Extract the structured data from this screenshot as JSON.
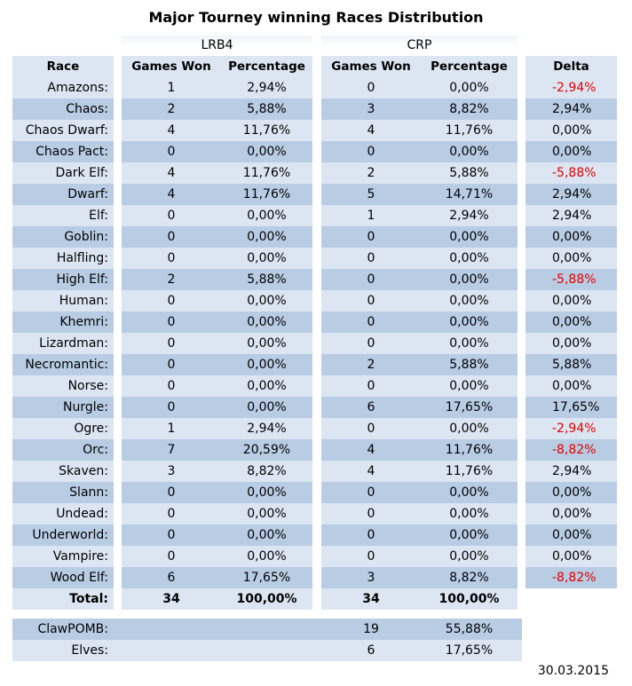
{
  "title": "Major Tourney winning Races Distribution",
  "groups": {
    "lrb4": "LRB4",
    "crp": "CRP"
  },
  "headers": {
    "race": "Race",
    "lrb4_games": "Games Won",
    "lrb4_pct": "Percentage",
    "crp_games": "Games Won",
    "crp_pct": "Percentage",
    "delta": "Delta"
  },
  "rows": [
    {
      "race": "Amazons:",
      "lg": "1",
      "lp": "2,94%",
      "cg": "0",
      "cp": "0,00%",
      "d": "-2,94%",
      "neg": true
    },
    {
      "race": "Chaos:",
      "lg": "2",
      "lp": "5,88%",
      "cg": "3",
      "cp": "8,82%",
      "d": "2,94%",
      "neg": false
    },
    {
      "race": "Chaos Dwarf:",
      "lg": "4",
      "lp": "11,76%",
      "cg": "4",
      "cp": "11,76%",
      "d": "0,00%",
      "neg": false
    },
    {
      "race": "Chaos Pact:",
      "lg": "0",
      "lp": "0,00%",
      "cg": "0",
      "cp": "0,00%",
      "d": "0,00%",
      "neg": false
    },
    {
      "race": "Dark Elf:",
      "lg": "4",
      "lp": "11,76%",
      "cg": "2",
      "cp": "5,88%",
      "d": "-5,88%",
      "neg": true
    },
    {
      "race": "Dwarf:",
      "lg": "4",
      "lp": "11,76%",
      "cg": "5",
      "cp": "14,71%",
      "d": "2,94%",
      "neg": false
    },
    {
      "race": "Elf:",
      "lg": "0",
      "lp": "0,00%",
      "cg": "1",
      "cp": "2,94%",
      "d": "2,94%",
      "neg": false
    },
    {
      "race": "Goblin:",
      "lg": "0",
      "lp": "0,00%",
      "cg": "0",
      "cp": "0,00%",
      "d": "0,00%",
      "neg": false
    },
    {
      "race": "Halfling:",
      "lg": "0",
      "lp": "0,00%",
      "cg": "0",
      "cp": "0,00%",
      "d": "0,00%",
      "neg": false
    },
    {
      "race": "High Elf:",
      "lg": "2",
      "lp": "5,88%",
      "cg": "0",
      "cp": "0,00%",
      "d": "-5,88%",
      "neg": true
    },
    {
      "race": "Human:",
      "lg": "0",
      "lp": "0,00%",
      "cg": "0",
      "cp": "0,00%",
      "d": "0,00%",
      "neg": false
    },
    {
      "race": "Khemri:",
      "lg": "0",
      "lp": "0,00%",
      "cg": "0",
      "cp": "0,00%",
      "d": "0,00%",
      "neg": false
    },
    {
      "race": "Lizardman:",
      "lg": "0",
      "lp": "0,00%",
      "cg": "0",
      "cp": "0,00%",
      "d": "0,00%",
      "neg": false
    },
    {
      "race": "Necromantic:",
      "lg": "0",
      "lp": "0,00%",
      "cg": "2",
      "cp": "5,88%",
      "d": "5,88%",
      "neg": false
    },
    {
      "race": "Norse:",
      "lg": "0",
      "lp": "0,00%",
      "cg": "0",
      "cp": "0,00%",
      "d": "0,00%",
      "neg": false
    },
    {
      "race": "Nurgle:",
      "lg": "0",
      "lp": "0,00%",
      "cg": "6",
      "cp": "17,65%",
      "d": "17,65%",
      "neg": false
    },
    {
      "race": "Ogre:",
      "lg": "1",
      "lp": "2,94%",
      "cg": "0",
      "cp": "0,00%",
      "d": "-2,94%",
      "neg": true
    },
    {
      "race": "Orc:",
      "lg": "7",
      "lp": "20,59%",
      "cg": "4",
      "cp": "11,76%",
      "d": "-8,82%",
      "neg": true
    },
    {
      "race": "Skaven:",
      "lg": "3",
      "lp": "8,82%",
      "cg": "4",
      "cp": "11,76%",
      "d": "2,94%",
      "neg": false
    },
    {
      "race": "Slann:",
      "lg": "0",
      "lp": "0,00%",
      "cg": "0",
      "cp": "0,00%",
      "d": "0,00%",
      "neg": false
    },
    {
      "race": "Undead:",
      "lg": "0",
      "lp": "0,00%",
      "cg": "0",
      "cp": "0,00%",
      "d": "0,00%",
      "neg": false
    },
    {
      "race": "Underworld:",
      "lg": "0",
      "lp": "0,00%",
      "cg": "0",
      "cp": "0,00%",
      "d": "0,00%",
      "neg": false
    },
    {
      "race": "Vampire:",
      "lg": "0",
      "lp": "0,00%",
      "cg": "0",
      "cp": "0,00%",
      "d": "0,00%",
      "neg": false
    },
    {
      "race": "Wood Elf:",
      "lg": "6",
      "lp": "17,65%",
      "cg": "3",
      "cp": "8,82%",
      "d": "-8,82%",
      "neg": true
    }
  ],
  "total": {
    "race": "Total:",
    "lg": "34",
    "lp": "100,00%",
    "cg": "34",
    "cp": "100,00%"
  },
  "extra": [
    {
      "race": "ClawPOMB:",
      "cg": "19",
      "cp": "55,88%"
    },
    {
      "race": "Elves:",
      "cg": "6",
      "cp": "17,65%"
    }
  ],
  "date": "30.03.2015",
  "colors": {
    "negative": "#e00000",
    "row_light": "#dce6f2",
    "row_dark": "#b8cce4"
  }
}
